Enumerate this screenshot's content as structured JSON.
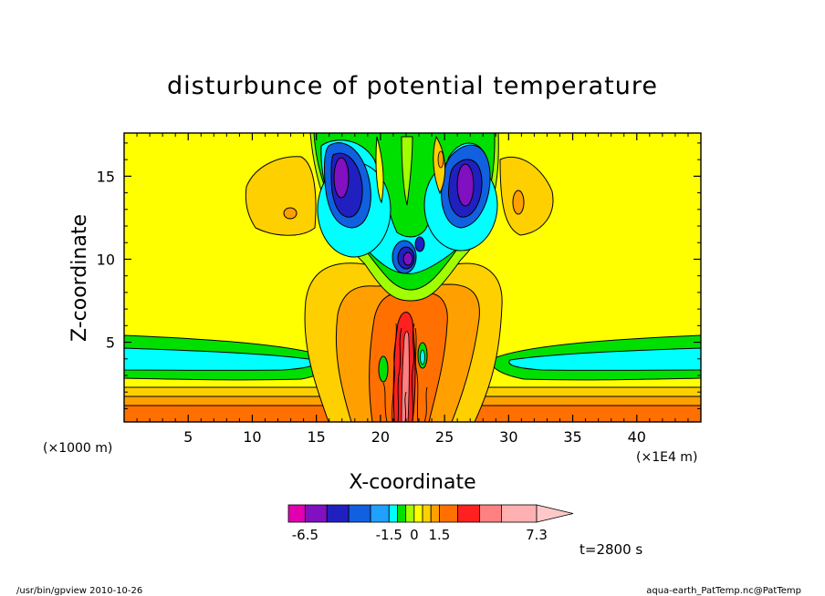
{
  "chart_data": {
    "type": "heatmap",
    "subtype": "filled-contour",
    "title": "disturbunce of potential temperature",
    "xlabel": "X-coordinate",
    "ylabel": "Z-coordinate",
    "x_unit": "(×1E4 m)",
    "y_unit": "(×1000 m)",
    "xlim": [
      0,
      45
    ],
    "ylim": [
      0.2,
      17.6
    ],
    "x_ticks": [
      5,
      10,
      15,
      20,
      25,
      30,
      35,
      40
    ],
    "y_ticks": [
      5,
      10,
      15
    ],
    "x_tick_labels": [
      "5",
      "10",
      "15",
      "20",
      "25",
      "30",
      "35",
      "40"
    ],
    "y_tick_labels": [
      "5",
      "10",
      "15"
    ],
    "colorbar": {
      "tick_labels": [
        "-6.5",
        "-1.5",
        "0",
        "1.5",
        "7.3"
      ],
      "tick_values": [
        -6.5,
        -1.5,
        0,
        1.5,
        7.3
      ],
      "levels": [
        -7.5,
        -6.5,
        -5.2,
        -3.9,
        -2.6,
        -1.5,
        -1.0,
        -0.5,
        0,
        0.5,
        1.0,
        1.5,
        2.6,
        3.9,
        5.2,
        7.3,
        8.5
      ],
      "colors": [
        "#e000b0",
        "#8010c0",
        "#2020c0",
        "#1060e0",
        "#20a0ff",
        "#00ffff",
        "#00e000",
        "#a0ff00",
        "#ffff00",
        "#ffd000",
        "#ffa000",
        "#ff7000",
        "#ff2020",
        "#ff8080",
        "#ffb0b0",
        "#ffc8c8"
      ],
      "extend": "max"
    },
    "annotations": [
      "t=2800 s"
    ],
    "background_value": 0.2
  },
  "footer": {
    "left": "/usr/bin/gpview   2010-10-26",
    "right": "aqua-earth_PatTemp.nc@PatTemp"
  }
}
